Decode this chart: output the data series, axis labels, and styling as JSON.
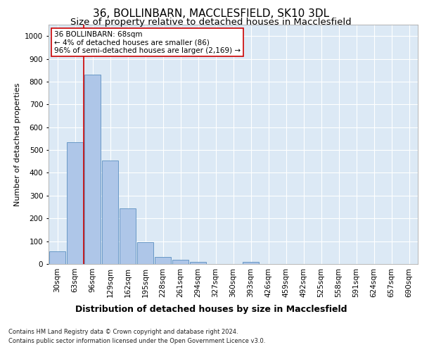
{
  "title1": "36, BOLLINBARN, MACCLESFIELD, SK10 3DL",
  "title2": "Size of property relative to detached houses in Macclesfield",
  "xlabel": "Distribution of detached houses by size in Macclesfield",
  "ylabel": "Number of detached properties",
  "categories": [
    "30sqm",
    "63sqm",
    "96sqm",
    "129sqm",
    "162sqm",
    "195sqm",
    "228sqm",
    "261sqm",
    "294sqm",
    "327sqm",
    "360sqm",
    "393sqm",
    "426sqm",
    "459sqm",
    "492sqm",
    "525sqm",
    "558sqm",
    "591sqm",
    "624sqm",
    "657sqm",
    "690sqm"
  ],
  "values": [
    55,
    535,
    830,
    455,
    245,
    95,
    30,
    20,
    10,
    0,
    0,
    10,
    0,
    0,
    0,
    0,
    0,
    0,
    0,
    0,
    0
  ],
  "bar_color": "#aec6e8",
  "bar_edge_color": "#5a8fc0",
  "vline_x": 1.5,
  "vline_color": "#cc0000",
  "annotation_text": "36 BOLLINBARN: 68sqm\n← 4% of detached houses are smaller (86)\n96% of semi-detached houses are larger (2,169) →",
  "annotation_box_color": "#ffffff",
  "annotation_box_edge": "#cc0000",
  "ylim": [
    0,
    1050
  ],
  "yticks": [
    0,
    100,
    200,
    300,
    400,
    500,
    600,
    700,
    800,
    900,
    1000
  ],
  "footer1": "Contains HM Land Registry data © Crown copyright and database right 2024.",
  "footer2": "Contains public sector information licensed under the Open Government Licence v3.0.",
  "plot_bg_color": "#dce9f5",
  "fig_bg_color": "#ffffff",
  "title1_fontsize": 11,
  "title2_fontsize": 9.5,
  "xlabel_fontsize": 9,
  "ylabel_fontsize": 8,
  "tick_fontsize": 7.5,
  "annotation_fontsize": 7.5,
  "footer_fontsize": 6
}
